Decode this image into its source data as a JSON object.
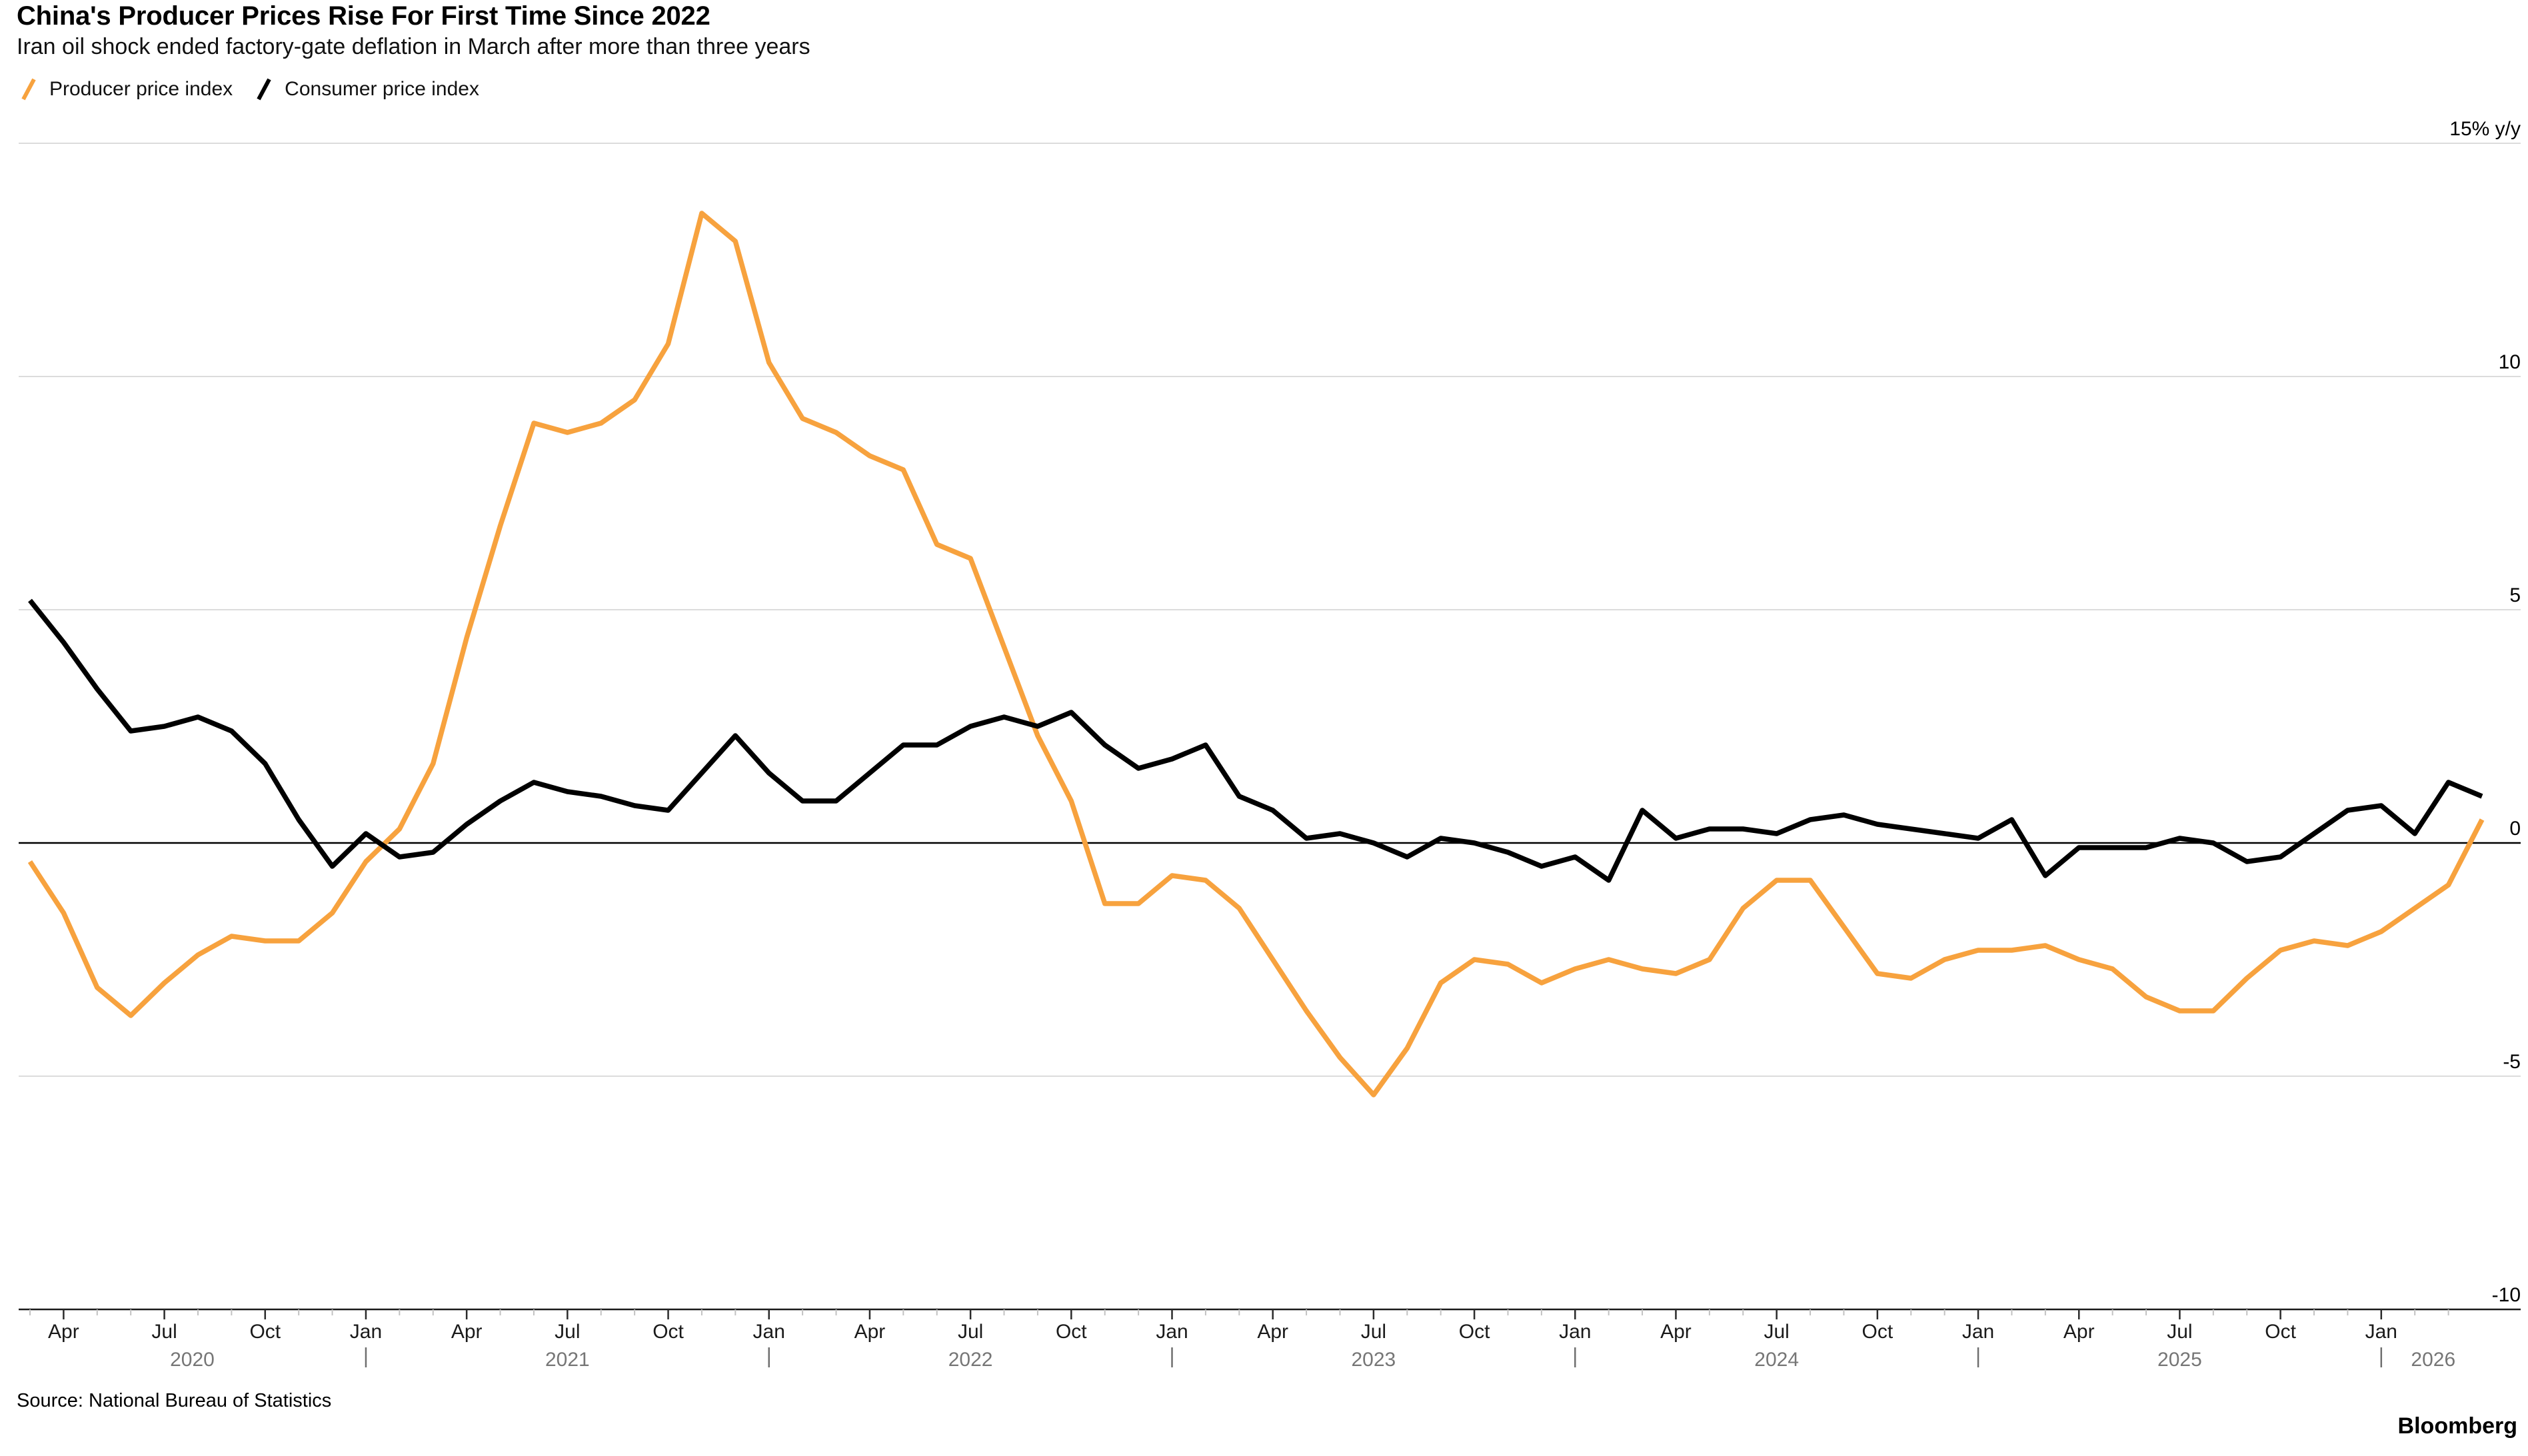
{
  "header": {
    "title": "China's Producer Prices Rise For First Time Since 2022",
    "subtitle": "Iran oil shock ended factory-gate deflation in March after more than three years"
  },
  "footer": {
    "source": "Source: National Bureau of Statistics",
    "brand": "Bloomberg"
  },
  "chart_data": {
    "type": "line",
    "title": "China's Producer Prices Rise For First Time Since 2022",
    "subtitle": "Iran oil shock ended factory-gate deflation in March after more than three years",
    "legend_position": "top-left",
    "grid": true,
    "x": {
      "start": "Feb 2020",
      "end": "Mar 2026",
      "frequency": "monthly",
      "count": 74,
      "major_tick_months": [
        "Jan",
        "Apr",
        "Jul",
        "Oct"
      ],
      "year_labels": [
        "2020",
        "2021",
        "2022",
        "2023",
        "2024",
        "2025",
        "2026"
      ]
    },
    "y": {
      "unit": "% y/y",
      "ylim": [
        -10,
        15
      ],
      "gridlines": [
        {
          "value": 15,
          "label": "15% y/y"
        },
        {
          "value": 10,
          "label": "10"
        },
        {
          "value": 5,
          "label": "5"
        },
        {
          "value": 0,
          "label": "0"
        },
        {
          "value": -5,
          "label": "-5"
        },
        {
          "value": -10,
          "label": "-10"
        }
      ]
    },
    "series": [
      {
        "name": "Producer price index",
        "color": "#F7A23E",
        "values": [
          -0.4,
          -1.5,
          -3.1,
          -3.7,
          -3.0,
          -2.4,
          -2.0,
          -2.1,
          -2.1,
          -1.5,
          -0.4,
          0.3,
          1.7,
          4.4,
          6.8,
          9.0,
          8.8,
          9.0,
          9.5,
          10.7,
          13.5,
          12.9,
          10.3,
          9.1,
          8.8,
          8.3,
          8.0,
          6.4,
          6.1,
          4.2,
          2.3,
          0.9,
          -1.3,
          -1.3,
          -0.7,
          -0.8,
          -1.4,
          -2.5,
          -3.6,
          -4.6,
          -5.4,
          -4.4,
          -3.0,
          -2.5,
          -2.6,
          -3.0,
          -2.7,
          -2.5,
          -2.7,
          -2.8,
          -2.5,
          -1.4,
          -0.8,
          -0.8,
          -1.8,
          -2.8,
          -2.9,
          -2.5,
          -2.3,
          -2.3,
          -2.2,
          -2.5,
          -2.7,
          -3.3,
          -3.6,
          -3.6,
          -2.9,
          -2.3,
          -2.1,
          -2.2,
          -1.9,
          -1.4,
          -0.9,
          0.5
        ]
      },
      {
        "name": "Consumer price index",
        "color": "#000000",
        "values": [
          5.2,
          4.3,
          3.3,
          2.4,
          2.5,
          2.7,
          2.4,
          1.7,
          0.5,
          -0.5,
          0.2,
          -0.3,
          -0.2,
          0.4,
          0.9,
          1.3,
          1.1,
          1.0,
          0.8,
          0.7,
          1.5,
          2.3,
          1.5,
          0.9,
          0.9,
          1.5,
          2.1,
          2.1,
          2.5,
          2.7,
          2.5,
          2.8,
          2.1,
          1.6,
          1.8,
          2.1,
          1.0,
          0.7,
          0.1,
          0.2,
          0.0,
          -0.3,
          0.1,
          0.0,
          -0.2,
          -0.5,
          -0.3,
          -0.8,
          0.7,
          0.1,
          0.3,
          0.3,
          0.2,
          0.5,
          0.6,
          0.4,
          0.3,
          0.2,
          0.1,
          0.5,
          -0.7,
          -0.1,
          -0.1,
          -0.1,
          0.1,
          0.0,
          -0.4,
          -0.3,
          0.2,
          0.7,
          0.8,
          0.2,
          1.3,
          1.0
        ]
      }
    ]
  }
}
